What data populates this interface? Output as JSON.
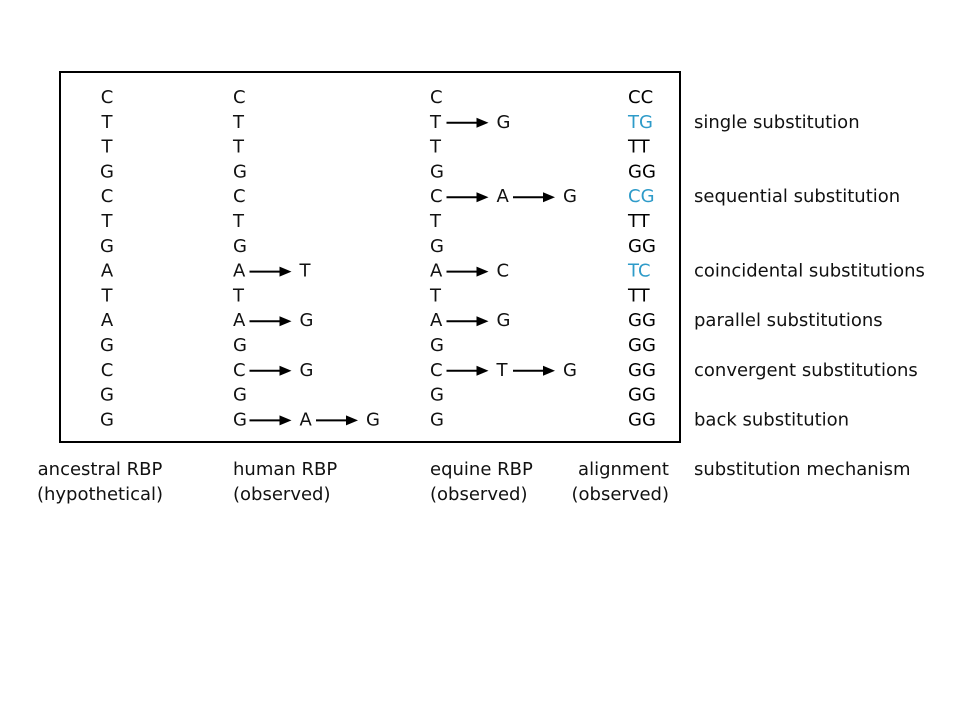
{
  "columns": [
    {
      "title": "ancestral RBP",
      "subtitle": "(hypothetical)"
    },
    {
      "title": "human RBP",
      "subtitle": "(observed)"
    },
    {
      "title": "equine RBP",
      "subtitle": "(observed)"
    },
    {
      "title": "alignment",
      "subtitle": "(observed)"
    },
    {
      "title": "substitution mechanism"
    }
  ],
  "rows": [
    {
      "ancestral": "C",
      "human": [
        "C"
      ],
      "equine": [
        "C"
      ],
      "alignment": "CC",
      "alignment_color": "#000000"
    },
    {
      "ancestral": "T",
      "human": [
        "T"
      ],
      "equine": [
        "T",
        "G"
      ],
      "alignment": "TG",
      "alignment_color": "#2e9bc9",
      "mechanism": "single substitution"
    },
    {
      "ancestral": "T",
      "human": [
        "T"
      ],
      "equine": [
        "T"
      ],
      "alignment": "TT",
      "alignment_color": "#000000"
    },
    {
      "ancestral": "G",
      "human": [
        "G"
      ],
      "equine": [
        "G"
      ],
      "alignment": "GG",
      "alignment_color": "#000000"
    },
    {
      "ancestral": "C",
      "human": [
        "C"
      ],
      "equine": [
        "C",
        "A",
        "G"
      ],
      "alignment": "CG",
      "alignment_color": "#2e9bc9",
      "mechanism": "sequential substitution"
    },
    {
      "ancestral": "T",
      "human": [
        "T"
      ],
      "equine": [
        "T"
      ],
      "alignment": "TT",
      "alignment_color": "#000000"
    },
    {
      "ancestral": "G",
      "human": [
        "G"
      ],
      "equine": [
        "G"
      ],
      "alignment": "GG",
      "alignment_color": "#000000"
    },
    {
      "ancestral": "A",
      "human": [
        "A",
        "T"
      ],
      "equine": [
        "A",
        "C"
      ],
      "alignment": "TC",
      "alignment_color": "#2e9bc9",
      "mechanism": "coincidental substitutions"
    },
    {
      "ancestral": "T",
      "human": [
        "T"
      ],
      "equine": [
        "T"
      ],
      "alignment": "TT",
      "alignment_color": "#000000"
    },
    {
      "ancestral": "A",
      "human": [
        "A",
        "G"
      ],
      "equine": [
        "A",
        "G"
      ],
      "alignment": "GG",
      "alignment_color": "#000000",
      "mechanism": "parallel substitutions"
    },
    {
      "ancestral": "G",
      "human": [
        "G"
      ],
      "equine": [
        "G"
      ],
      "alignment": "GG",
      "alignment_color": "#000000"
    },
    {
      "ancestral": "C",
      "human": [
        "C",
        "G"
      ],
      "equine": [
        "C",
        "T",
        "G"
      ],
      "alignment": "GG",
      "alignment_color": "#000000",
      "mechanism": "convergent substitutions"
    },
    {
      "ancestral": "G",
      "human": [
        "G"
      ],
      "equine": [
        "G"
      ],
      "alignment": "GG",
      "alignment_color": "#000000"
    },
    {
      "ancestral": "G",
      "human": [
        "G",
        "A",
        "G"
      ],
      "equine": [
        "G"
      ],
      "alignment": "GG",
      "alignment_color": "#000000",
      "mechanism": "back substitution"
    }
  ]
}
